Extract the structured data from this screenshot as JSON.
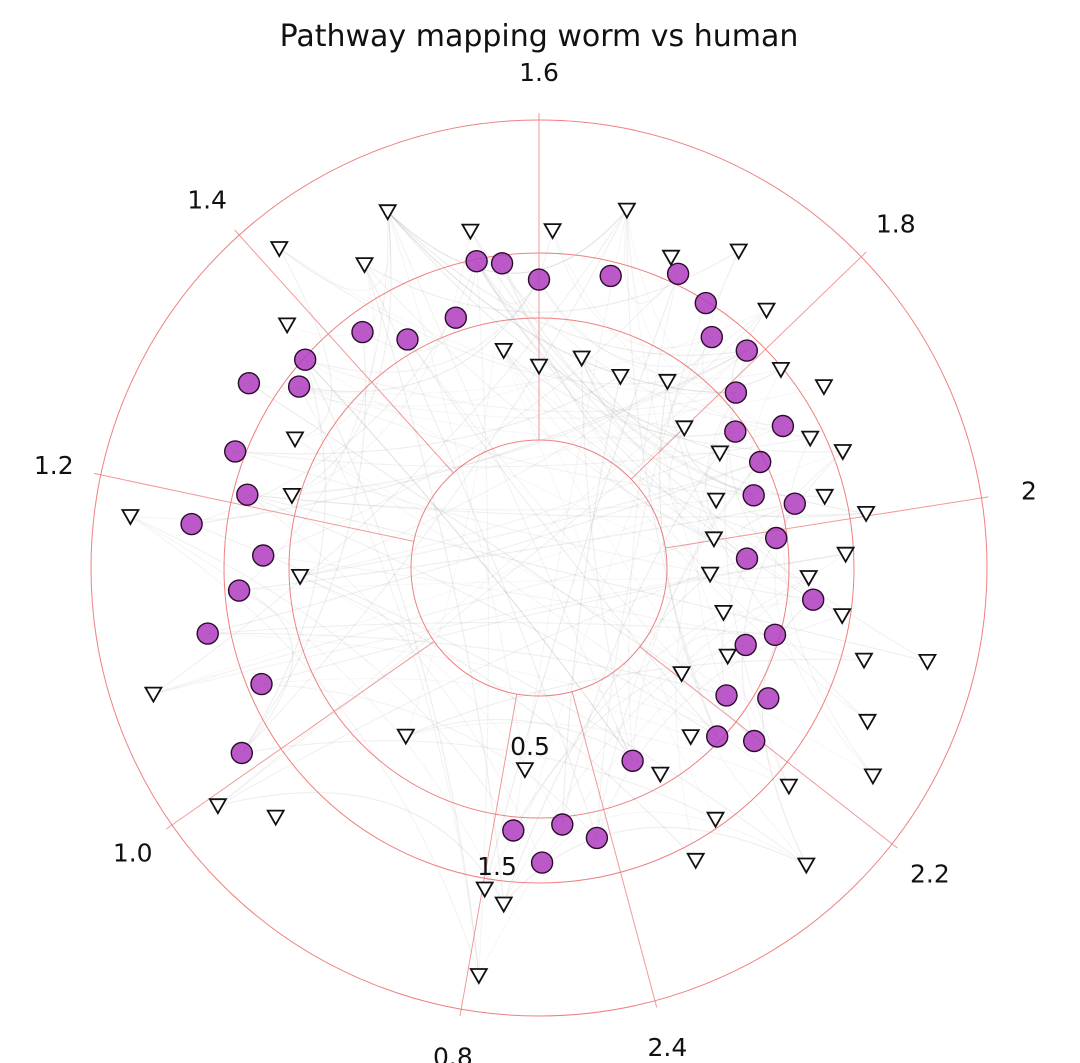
{
  "chart_data": {
    "type": "scatter",
    "projection": "polar-hive",
    "title": "Pathway mapping worm vs human",
    "angular_ticks": [
      "1.6",
      "1.8",
      "2",
      "2.2",
      "2.4",
      "0.8",
      "1.0",
      "1.2",
      "1.4"
    ],
    "radial_ticks": [
      "0.5",
      "1.5"
    ],
    "grid": true,
    "colors": {
      "grid": "#f08080",
      "edges": "#9a9a9a",
      "circle_fill": "#b03cc0",
      "triangle_fill": "#ffffff",
      "marker_edge": "#111111"
    },
    "series": [
      {
        "marker": "circle",
        "points": [
          [
            1.55,
            3.3
          ],
          [
            1.57,
            3.25
          ],
          [
            1.6,
            3.1
          ],
          [
            1.66,
            3.2
          ],
          [
            1.71,
            3.4
          ],
          [
            1.74,
            3.3
          ],
          [
            1.76,
            3.1
          ],
          [
            1.79,
            3.2
          ],
          [
            1.81,
            2.9
          ],
          [
            1.84,
            2.7
          ],
          [
            1.86,
            3.05
          ],
          [
            1.88,
            2.75
          ],
          [
            1.91,
            2.6
          ],
          [
            1.93,
            2.9
          ],
          [
            1.96,
            2.7
          ],
          [
            1.98,
            2.45
          ],
          [
            2.02,
            3.0
          ],
          [
            2.06,
            2.75
          ],
          [
            2.08,
            2.55
          ],
          [
            2.12,
            2.9
          ],
          [
            2.14,
            2.6
          ],
          [
            2.16,
            3.0
          ],
          [
            2.18,
            2.75
          ],
          [
            2.27,
            2.5
          ],
          [
            2.33,
            3.0
          ],
          [
            2.36,
            2.85
          ],
          [
            2.38,
            3.15
          ],
          [
            1.44,
            3.15
          ],
          [
            1.47,
            2.9
          ],
          [
            1.39,
            3.3
          ],
          [
            1.35,
            3.55
          ],
          [
            1.37,
            3.2
          ],
          [
            1.3,
            3.4
          ],
          [
            1.27,
            3.2
          ],
          [
            1.24,
            3.6
          ],
          [
            1.22,
            3.0
          ],
          [
            1.19,
            3.2
          ],
          [
            1.16,
            3.5
          ],
          [
            1.11,
            3.2
          ],
          [
            1.07,
            3.6
          ],
          [
            0.78,
            2.9
          ],
          [
            1.52,
            2.9
          ]
        ]
      },
      {
        "marker": "triangle-down",
        "points": [
          [
            1.5,
            3.9
          ],
          [
            1.43,
            4.1
          ],
          [
            1.47,
            3.6
          ],
          [
            1.55,
            3.55
          ],
          [
            1.61,
            3.5
          ],
          [
            1.66,
            3.75
          ],
          [
            1.7,
            3.5
          ],
          [
            1.74,
            3.8
          ],
          [
            1.78,
            3.55
          ],
          [
            1.82,
            3.3
          ],
          [
            1.85,
            3.5
          ],
          [
            1.88,
            3.2
          ],
          [
            1.9,
            3.4
          ],
          [
            1.93,
            3.15
          ],
          [
            1.95,
            3.45
          ],
          [
            1.98,
            3.25
          ],
          [
            2.0,
            2.95
          ],
          [
            2.03,
            3.25
          ],
          [
            2.06,
            3.5
          ],
          [
            2.1,
            3.7
          ],
          [
            2.13,
            3.95
          ],
          [
            2.17,
            3.45
          ],
          [
            2.2,
            4.0
          ],
          [
            2.23,
            3.25
          ],
          [
            2.26,
            3.45
          ],
          [
            1.56,
            2.55
          ],
          [
            1.6,
            2.4
          ],
          [
            1.65,
            2.5
          ],
          [
            1.7,
            2.45
          ],
          [
            1.75,
            2.6
          ],
          [
            1.8,
            2.4
          ],
          [
            1.85,
            2.5
          ],
          [
            1.9,
            2.3
          ],
          [
            1.95,
            2.2
          ],
          [
            2.0,
            2.15
          ],
          [
            2.05,
            2.3
          ],
          [
            2.1,
            2.45
          ],
          [
            2.15,
            2.2
          ],
          [
            2.2,
            2.6
          ],
          [
            2.25,
            2.7
          ],
          [
            1.4,
            3.6
          ],
          [
            1.33,
            3.0
          ],
          [
            1.28,
            2.85
          ],
          [
            1.24,
            4.1
          ],
          [
            1.2,
            2.7
          ],
          [
            1.13,
            4.05
          ],
          [
            1.05,
            4.0
          ],
          [
            1.02,
            3.7
          ],
          [
            0.98,
            3.4
          ],
          [
            0.92,
            4.1
          ],
          [
            0.8,
            3.5
          ],
          [
            2.05,
            4.0
          ],
          [
            2.4,
            2.4
          ],
          [
            2.42,
            2.5
          ]
        ]
      }
    ]
  }
}
